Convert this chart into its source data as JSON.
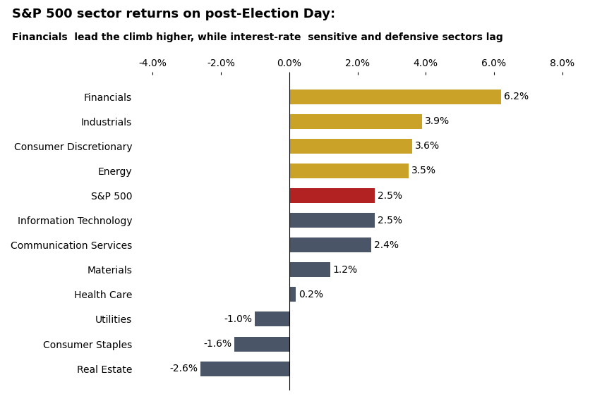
{
  "title": "S&P 500 sector returns on post-Election Day:",
  "subtitle": "Financials  lead the climb higher, while interest-rate  sensitive and defensive sectors lag",
  "categories": [
    "Financials",
    "Industrials",
    "Consumer Discretionary",
    "Energy",
    "S&P 500",
    "Information Technology",
    "Communication Services",
    "Materials",
    "Health Care",
    "Utilities",
    "Consumer Staples",
    "Real Estate"
  ],
  "values": [
    6.2,
    3.9,
    3.6,
    3.5,
    2.5,
    2.5,
    2.4,
    1.2,
    0.2,
    -1.0,
    -1.6,
    -2.6
  ],
  "colors": [
    "#C9A227",
    "#C9A227",
    "#C9A227",
    "#C9A227",
    "#B22222",
    "#4A5568",
    "#4A5568",
    "#4A5568",
    "#4A5568",
    "#4A5568",
    "#4A5568",
    "#4A5568"
  ],
  "xlim": [
    -4.5,
    8.5
  ],
  "xticks": [
    -4.0,
    -2.0,
    0.0,
    2.0,
    4.0,
    6.0,
    8.0
  ],
  "background_color": "#FFFFFF",
  "title_fontsize": 13,
  "subtitle_fontsize": 10,
  "label_fontsize": 10,
  "tick_fontsize": 10,
  "bar_label_fontsize": 10
}
